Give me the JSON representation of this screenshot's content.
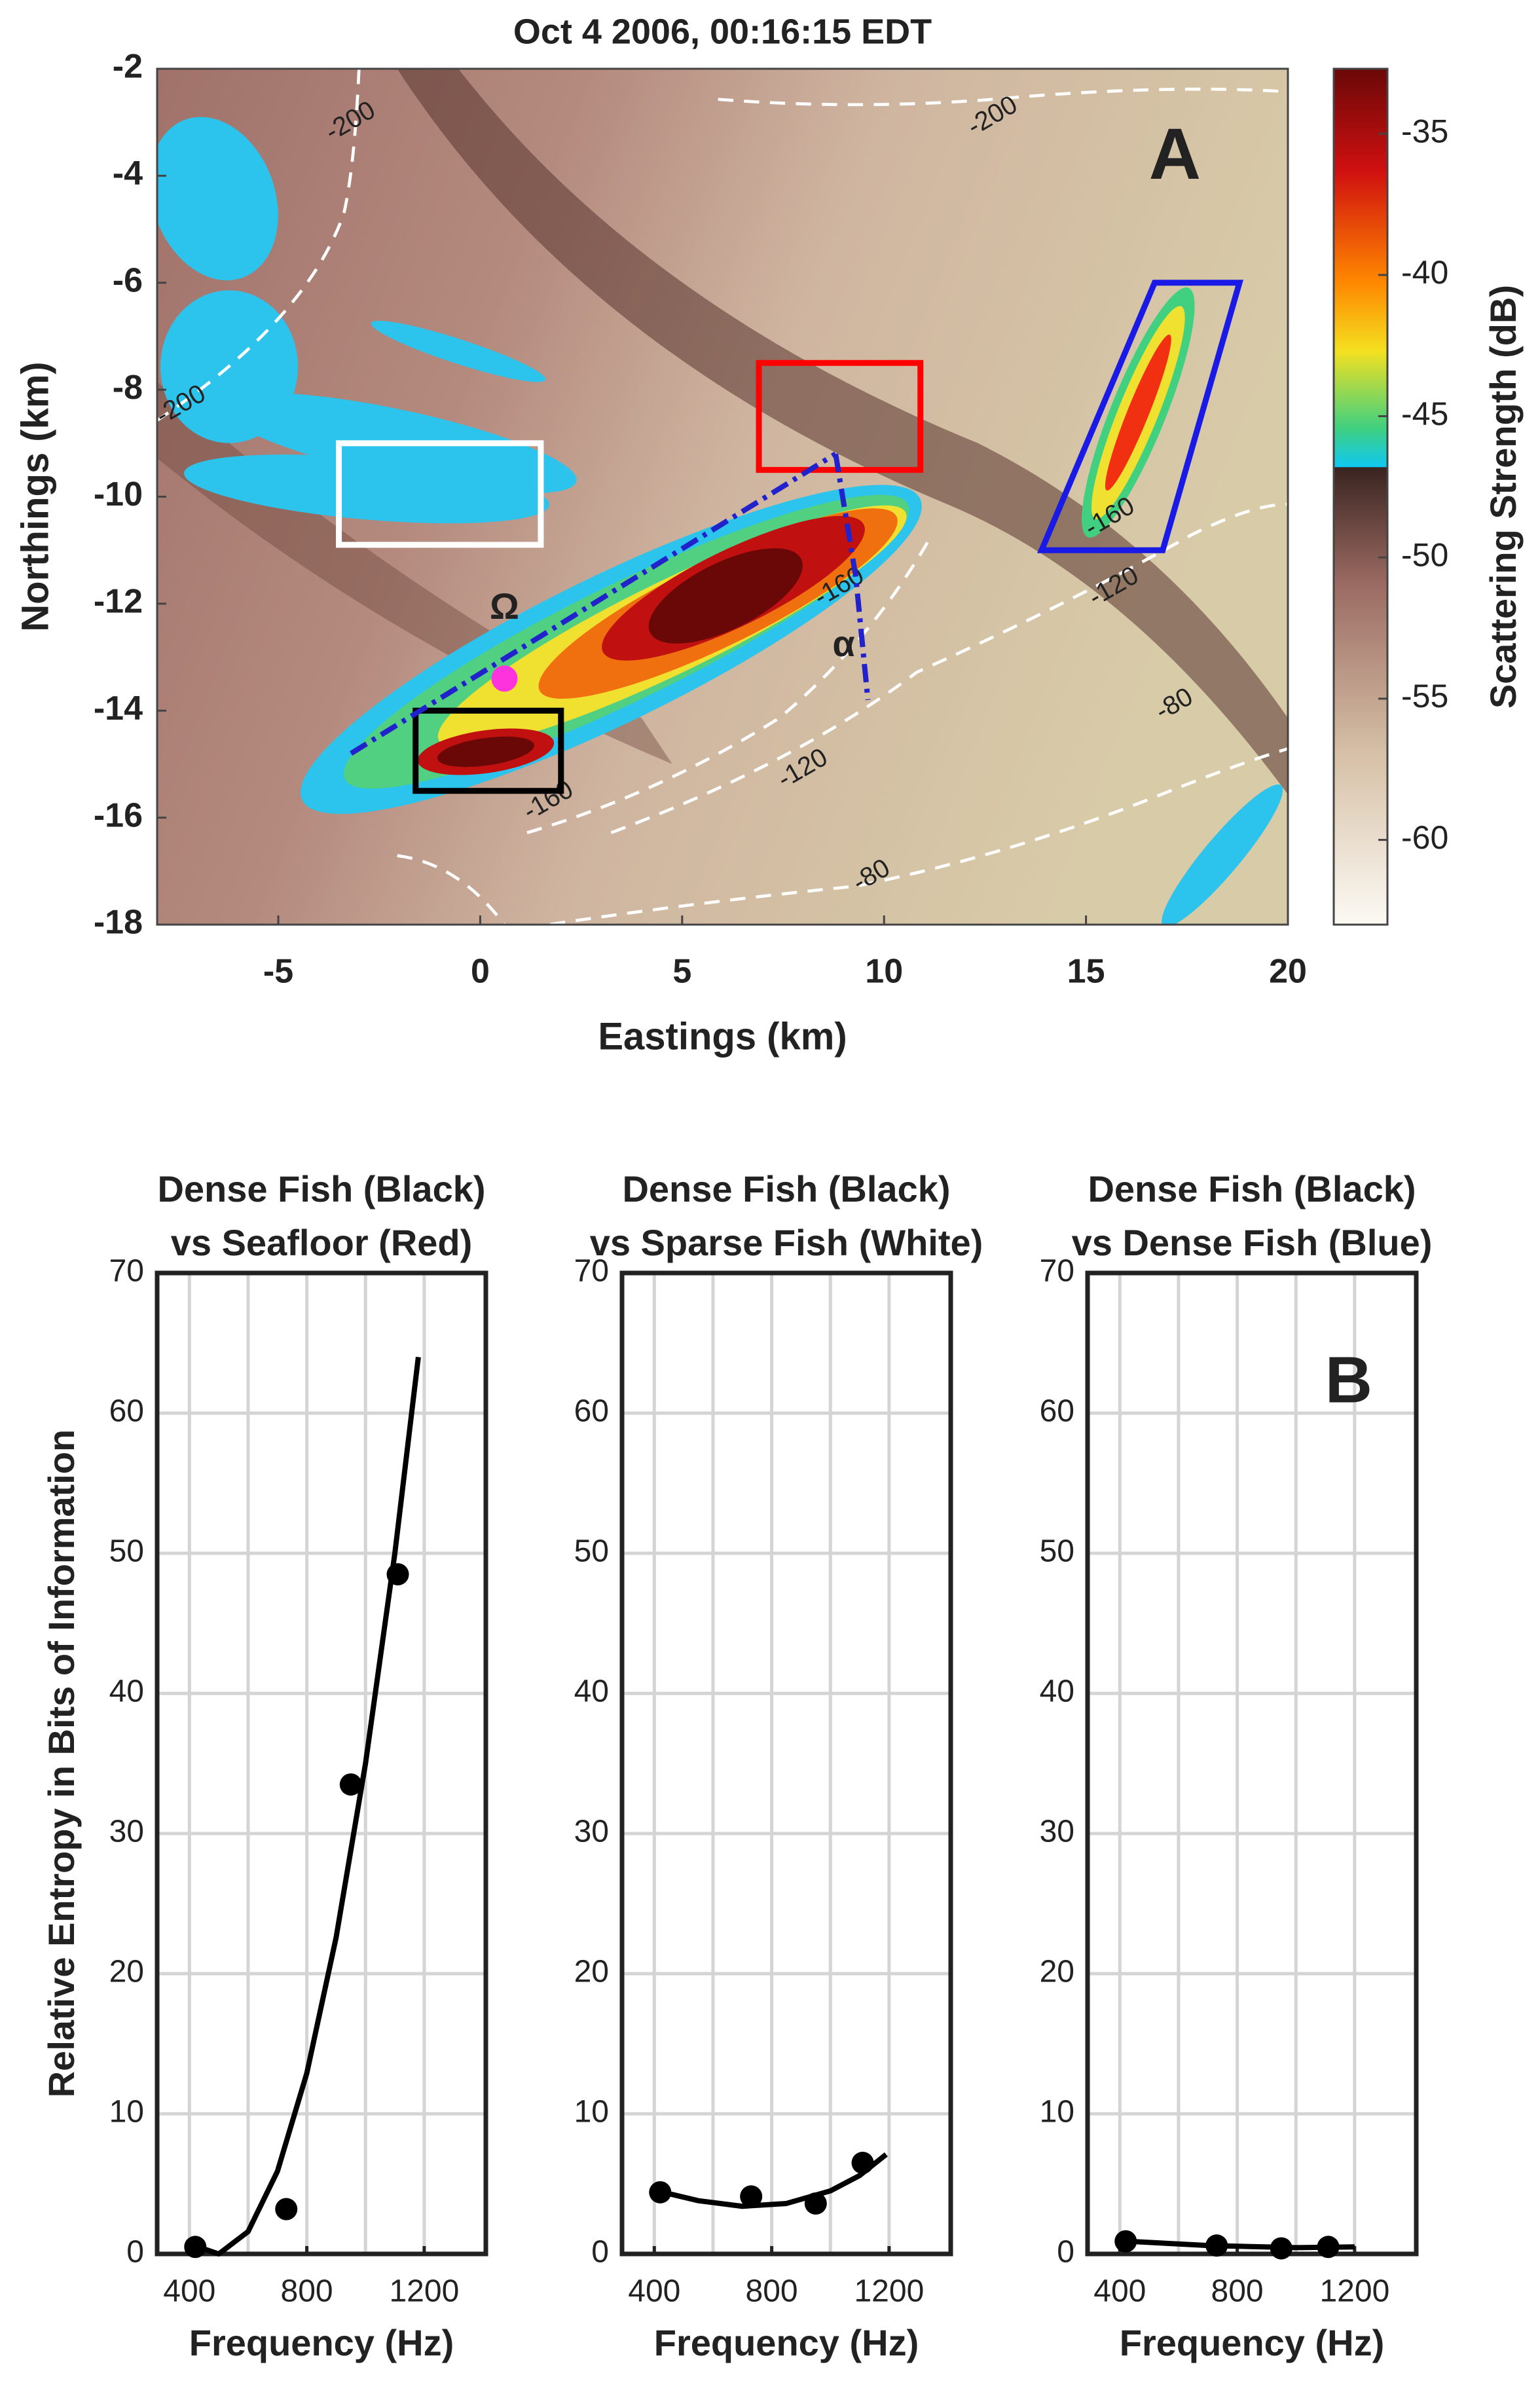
{
  "chart_data": [
    {
      "type": "heatmap",
      "title": "Oct 4 2006, 00:16:15 EDT",
      "x_label": "Eastings (km)",
      "y_label": "Northings (km)",
      "xlim": [
        -8,
        20
      ],
      "ylim": [
        -18,
        -2
      ],
      "xticks": [
        -5,
        0,
        5,
        10,
        15,
        20
      ],
      "yticks": [
        -18,
        -16,
        -14,
        -12,
        -10,
        -8,
        -6,
        -4,
        -2
      ],
      "colorbar": {
        "label": "Scattering Strength (dB)",
        "lim": [
          -63,
          -32.7
        ],
        "ticks": [
          -60,
          -55,
          -50,
          -45,
          -40,
          -35
        ]
      },
      "panel_label": {
        "text": "A",
        "x": 17.2,
        "y": -3.7
      },
      "annotations": [
        {
          "text": "Ω",
          "x": 0.6,
          "y": -12.1
        },
        {
          "text": "α",
          "x": 9.0,
          "y": -12.8
        }
      ],
      "contour_labels": [
        {
          "level": -200,
          "x": -3.2,
          "y": -3.0
        },
        {
          "level": -200,
          "x": 12.7,
          "y": -2.9
        },
        {
          "level": -200,
          "x": -7.4,
          "y": -8.3
        },
        {
          "level": -160,
          "x": 1.7,
          "y": -15.7
        },
        {
          "level": -160,
          "x": 8.9,
          "y": -11.7
        },
        {
          "level": -160,
          "x": 15.6,
          "y": -10.4
        },
        {
          "level": -120,
          "x": 8.0,
          "y": -15.1
        },
        {
          "level": -120,
          "x": 15.7,
          "y": -11.7
        },
        {
          "level": -80,
          "x": 9.7,
          "y": -17.1
        },
        {
          "level": -80,
          "x": 17.2,
          "y": -13.9
        }
      ],
      "boxes": [
        {
          "color": "#ffffff",
          "x": [
            -3.5,
            1.5,
            1.5,
            -3.5
          ],
          "y": [
            -10.9,
            -10.9,
            -9.0,
            -9.0
          ]
        },
        {
          "color": "#ff0000",
          "x": [
            6.9,
            10.9,
            10.9,
            6.9
          ],
          "y": [
            -9.5,
            -9.5,
            -7.5,
            -7.5
          ]
        },
        {
          "color": "#000000",
          "x": [
            -1.6,
            2.0,
            2.0,
            -1.6
          ],
          "y": [
            -15.5,
            -15.5,
            -14.0,
            -14.0
          ]
        },
        {
          "color": "#1a1ae6",
          "x": [
            16.7,
            18.8,
            16.9,
            13.9
          ],
          "y": [
            -6.0,
            -6.0,
            -11.0,
            -11.0
          ]
        }
      ],
      "tracks": [
        {
          "color": "#2222cc",
          "x": [
            -3.2,
            8.8
          ],
          "y": [
            -14.8,
            -9.2
          ]
        },
        {
          "color": "#2222cc",
          "x": [
            8.8,
            9.3,
            9.6
          ],
          "y": [
            -9.2,
            -11.5,
            -13.8
          ]
        }
      ],
      "markers": [
        {
          "color": "#ff33dd",
          "x": 0.6,
          "y": -13.4
        }
      ]
    },
    {
      "type": "scatter",
      "title": [
        "Dense Fish (Black)",
        "vs Seafloor (Red)"
      ],
      "x_label": "Frequency (Hz)",
      "y_label": "Relative Entropy in Bits of Information",
      "x": [
        420,
        730,
        950,
        1110
      ],
      "values": [
        0.5,
        3.2,
        33.5,
        48.5
      ],
      "fit": {
        "x": [
          430,
          500,
          600,
          700,
          800,
          900,
          1000,
          1100,
          1180
        ],
        "values": [
          0.5,
          0,
          1.6,
          5.9,
          12.9,
          22.6,
          35,
          50,
          64
        ]
      },
      "color": "#000000",
      "xlim": [
        290,
        1410
      ],
      "ylim": [
        0,
        70
      ],
      "xticks": [
        400,
        800,
        1200
      ],
      "xgrid": [
        400,
        600,
        800,
        1000,
        1200
      ],
      "yticks": [
        0,
        10,
        20,
        30,
        40,
        50,
        60,
        70
      ]
    },
    {
      "type": "scatter",
      "title": [
        "Dense Fish (Black)",
        "vs Sparse Fish (White)"
      ],
      "x_label": "Frequency (Hz)",
      "x": [
        420,
        730,
        950,
        1110
      ],
      "values": [
        4.4,
        4.1,
        3.6,
        6.5
      ],
      "fit": {
        "x": [
          430,
          550,
          700,
          850,
          1000,
          1100,
          1190
        ],
        "values": [
          4.4,
          3.8,
          3.4,
          3.6,
          4.5,
          5.6,
          7.1
        ]
      },
      "color": "#000000",
      "xlim": [
        290,
        1410
      ],
      "ylim": [
        0,
        70
      ],
      "xticks": [
        400,
        800,
        1200
      ],
      "xgrid": [
        400,
        600,
        800,
        1000,
        1200
      ],
      "yticks": [
        0,
        10,
        20,
        30,
        40,
        50,
        60,
        70
      ]
    },
    {
      "type": "scatter",
      "title": [
        "Dense Fish (Black)",
        "vs Dense Fish (Blue)"
      ],
      "x_label": "Frequency (Hz)",
      "x": [
        420,
        730,
        950,
        1110
      ],
      "values": [
        0.9,
        0.6,
        0.4,
        0.5
      ],
      "fit": {
        "x": [
          430,
          700,
          1000,
          1200
        ],
        "values": [
          0.9,
          0.6,
          0.45,
          0.5
        ]
      },
      "panel_label": {
        "text": "B",
        "x": 1180,
        "y": 62
      },
      "color": "#000000",
      "xlim": [
        290,
        1410
      ],
      "ylim": [
        0,
        70
      ],
      "xticks": [
        400,
        800,
        1200
      ],
      "xgrid": [
        400,
        600,
        800,
        1000,
        1200
      ],
      "yticks": [
        0,
        10,
        20,
        30,
        40,
        50,
        60,
        70
      ]
    }
  ]
}
